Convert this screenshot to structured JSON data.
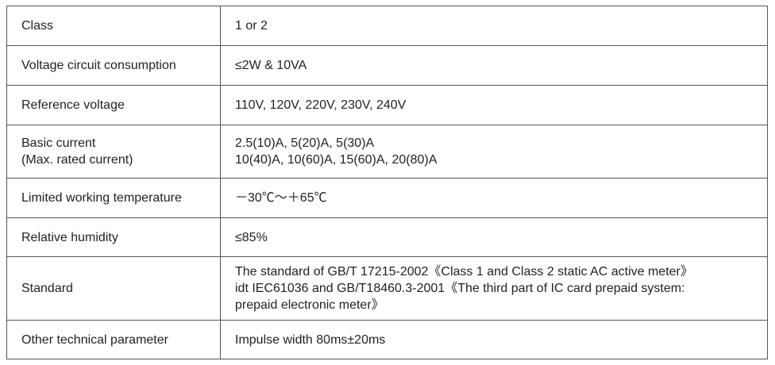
{
  "rows": [
    {
      "label": "Class",
      "value": [
        "1 or 2"
      ]
    },
    {
      "label": "Voltage circuit consumption",
      "value": [
        "≤2W &  10VA"
      ]
    },
    {
      "label": "Reference voltage",
      "value": [
        "110V, 120V, 220V, 230V, 240V"
      ]
    },
    {
      "label": "Basic current",
      "label2": "(Max. rated current)",
      "value": [
        "2.5(10)A, 5(20)A, 5(30)A",
        "10(40)A, 10(60)A, 15(60)A, 20(80)A"
      ]
    },
    {
      "label": "Limited working temperature",
      "value": [
        "－30℃～＋65℃"
      ]
    },
    {
      "label": "Relative humidity",
      "value": [
        "≤85%"
      ]
    },
    {
      "label": "Standard",
      "value": [
        "The standard of GB/T 17215-2002《Class 1 and Class 2 static AC active meter》",
        "idt IEC61036 and GB/T18460.3-2001《The third part of IC card prepaid system:",
        "prepaid electronic meter》"
      ]
    },
    {
      "label": "Other technical parameter",
      "value": [
        "Impulse width 80ms±20ms"
      ]
    }
  ]
}
